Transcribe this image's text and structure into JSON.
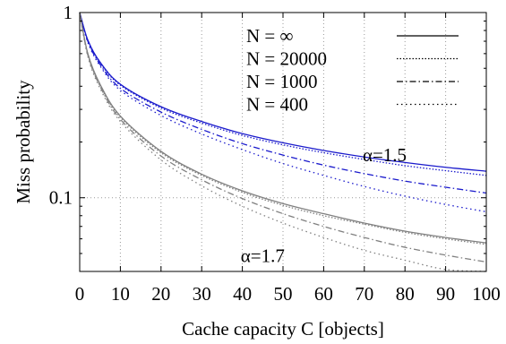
{
  "chart_data": {
    "type": "line",
    "xlabel": "Cache capacity C [objects]",
    "ylabel": "Miss probability",
    "xlim": [
      0,
      100
    ],
    "ylim": [
      0.04,
      1
    ],
    "y_scale": "log",
    "x_ticks": [
      "0",
      "10",
      "20",
      "30",
      "40",
      "50",
      "60",
      "70",
      "80",
      "90",
      "100"
    ],
    "y_ticks": [
      {
        "value": 1,
        "label": "1"
      },
      {
        "value": 0.1,
        "label": "0.1"
      }
    ],
    "grid": "dotted vertical lines at x ticks; dotted horizontal line at 0.1",
    "legend_position": "top-right",
    "legend": [
      {
        "label": "N = ∞",
        "dash": "solid"
      },
      {
        "label": "N = 20000",
        "dash": "dotted"
      },
      {
        "label": "N = 1000",
        "dash": "dash-dot"
      },
      {
        "label": "N = 400",
        "dash": "dense-dot"
      }
    ],
    "annotations": [
      {
        "text": "α=1.5",
        "x": 74,
        "y": 0.17
      },
      {
        "text": "α=1.7",
        "x": 44,
        "y": 0.0485
      }
    ],
    "colors": {
      "alpha_1_5": "#1a1acc",
      "alpha_1_7": "#808080"
    },
    "series": [
      {
        "group": "α=1.5",
        "dash": "solid",
        "x": [
          0,
          2,
          5,
          10,
          20,
          30,
          40,
          50,
          60,
          70,
          80,
          90,
          100
        ],
        "y": [
          1,
          0.71,
          0.54,
          0.41,
          0.31,
          0.258,
          0.222,
          0.198,
          0.18,
          0.166,
          0.155,
          0.146,
          0.139
        ]
      },
      {
        "group": "α=1.5",
        "dash": "dotted",
        "x": [
          0,
          2,
          5,
          10,
          20,
          30,
          40,
          50,
          60,
          70,
          80,
          90,
          100
        ],
        "y": [
          1,
          0.705,
          0.535,
          0.405,
          0.305,
          0.253,
          0.217,
          0.193,
          0.175,
          0.161,
          0.149,
          0.14,
          0.132
        ]
      },
      {
        "group": "α=1.5",
        "dash": "dash-dot",
        "x": [
          0,
          2,
          5,
          10,
          20,
          30,
          40,
          50,
          60,
          70,
          80,
          90,
          100
        ],
        "y": [
          1,
          0.7,
          0.525,
          0.39,
          0.29,
          0.234,
          0.196,
          0.17,
          0.15,
          0.135,
          0.123,
          0.114,
          0.106
        ]
      },
      {
        "group": "α=1.5",
        "dash": "dense-dot",
        "x": [
          0,
          2,
          5,
          10,
          20,
          30,
          40,
          50,
          60,
          70,
          80,
          90,
          100
        ],
        "y": [
          1,
          0.69,
          0.515,
          0.38,
          0.278,
          0.221,
          0.182,
          0.153,
          0.132,
          0.115,
          0.102,
          0.092,
          0.084
        ]
      },
      {
        "group": "α=1.7",
        "dash": "solid",
        "x": [
          0,
          2,
          5,
          10,
          20,
          30,
          40,
          50,
          60,
          70,
          80,
          90,
          100
        ],
        "y": [
          1,
          0.6,
          0.41,
          0.276,
          0.178,
          0.134,
          0.109,
          0.093,
          0.082,
          0.073,
          0.066,
          0.061,
          0.057
        ]
      },
      {
        "group": "α=1.7",
        "dash": "dotted",
        "x": [
          0,
          2,
          5,
          10,
          20,
          30,
          40,
          50,
          60,
          70,
          80,
          90,
          100
        ],
        "y": [
          1,
          0.598,
          0.405,
          0.272,
          0.175,
          0.132,
          0.107,
          0.091,
          0.08,
          0.072,
          0.065,
          0.06,
          0.056
        ]
      },
      {
        "group": "α=1.7",
        "dash": "dash-dot",
        "x": [
          0,
          2,
          5,
          10,
          20,
          30,
          40,
          50,
          60,
          70,
          80,
          90,
          100
        ],
        "y": [
          1,
          0.59,
          0.4,
          0.265,
          0.168,
          0.125,
          0.099,
          0.082,
          0.07,
          0.061,
          0.054,
          0.049,
          0.045
        ]
      },
      {
        "group": "α=1.7",
        "dash": "dense-dot",
        "x": [
          0,
          2,
          5,
          10,
          20,
          30,
          40,
          50,
          60,
          70,
          80,
          90,
          100
        ],
        "y": [
          1,
          0.58,
          0.39,
          0.258,
          0.16,
          0.116,
          0.09,
          0.073,
          0.061,
          0.052,
          0.046,
          0.041,
          0.038
        ]
      }
    ]
  }
}
